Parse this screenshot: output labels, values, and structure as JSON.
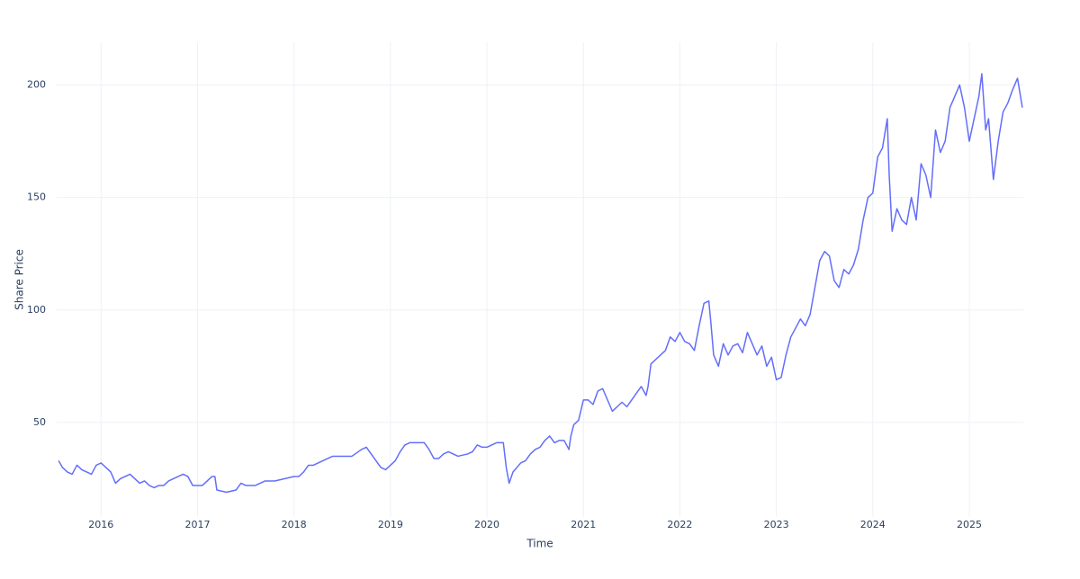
{
  "chart_data": {
    "type": "line",
    "x_label": "Time",
    "y_label": "Share Price",
    "color": "#636efa",
    "grid": true,
    "xlim": [
      2015.54,
      2025.56
    ],
    "ylim": [
      8,
      219
    ],
    "xticks": [
      2016,
      2017,
      2018,
      2019,
      2020,
      2021,
      2022,
      2023,
      2024,
      2025
    ],
    "yticks": [
      50,
      100,
      150,
      200
    ],
    "x": [
      2015.56,
      2015.6,
      2015.65,
      2015.7,
      2015.75,
      2015.8,
      2015.85,
      2015.9,
      2015.95,
      2016.0,
      2016.05,
      2016.1,
      2016.15,
      2016.2,
      2016.25,
      2016.3,
      2016.35,
      2016.4,
      2016.45,
      2016.5,
      2016.55,
      2016.6,
      2016.65,
      2016.7,
      2016.75,
      2016.8,
      2016.85,
      2016.9,
      2016.95,
      2017.0,
      2017.05,
      2017.1,
      2017.15,
      2017.18,
      2017.2,
      2017.3,
      2017.4,
      2017.45,
      2017.5,
      2017.6,
      2017.7,
      2017.8,
      2017.9,
      2018.0,
      2018.05,
      2018.1,
      2018.15,
      2018.2,
      2018.3,
      2018.4,
      2018.5,
      2018.6,
      2018.7,
      2018.75,
      2018.8,
      2018.85,
      2018.9,
      2018.95,
      2019.0,
      2019.05,
      2019.1,
      2019.15,
      2019.2,
      2019.3,
      2019.35,
      2019.4,
      2019.45,
      2019.5,
      2019.55,
      2019.6,
      2019.7,
      2019.8,
      2019.85,
      2019.9,
      2019.95,
      2020.0,
      2020.05,
      2020.1,
      2020.15,
      2020.17,
      2020.2,
      2020.23,
      2020.27,
      2020.35,
      2020.4,
      2020.45,
      2020.5,
      2020.55,
      2020.6,
      2020.65,
      2020.7,
      2020.75,
      2020.8,
      2020.85,
      2020.87,
      2020.9,
      2020.95,
      2021.0,
      2021.05,
      2021.1,
      2021.15,
      2021.2,
      2021.25,
      2021.3,
      2021.35,
      2021.4,
      2021.45,
      2021.5,
      2021.55,
      2021.6,
      2021.65,
      2021.67,
      2021.7,
      2021.75,
      2021.8,
      2021.85,
      2021.9,
      2021.95,
      2022.0,
      2022.05,
      2022.1,
      2022.15,
      2022.2,
      2022.25,
      2022.3,
      2022.32,
      2022.35,
      2022.4,
      2022.45,
      2022.5,
      2022.55,
      2022.6,
      2022.65,
      2022.7,
      2022.75,
      2022.8,
      2022.85,
      2022.9,
      2022.95,
      2023.0,
      2023.05,
      2023.1,
      2023.15,
      2023.2,
      2023.25,
      2023.3,
      2023.35,
      2023.4,
      2023.45,
      2023.5,
      2023.55,
      2023.6,
      2023.65,
      2023.7,
      2023.75,
      2023.8,
      2023.85,
      2023.9,
      2023.95,
      2024.0,
      2024.05,
      2024.1,
      2024.15,
      2024.17,
      2024.2,
      2024.25,
      2024.3,
      2024.35,
      2024.4,
      2024.45,
      2024.5,
      2024.55,
      2024.6,
      2024.65,
      2024.7,
      2024.75,
      2024.8,
      2024.85,
      2024.9,
      2024.95,
      2025.0,
      2025.05,
      2025.1,
      2025.13,
      2025.17,
      2025.2,
      2025.25,
      2025.3,
      2025.35,
      2025.4,
      2025.45,
      2025.5,
      2025.55
    ],
    "values": [
      33,
      30,
      28,
      27,
      31,
      29,
      28,
      27,
      31,
      32,
      30,
      28,
      23,
      25,
      26,
      27,
      25,
      23,
      24,
      22,
      21,
      22,
      22,
      24,
      25,
      26,
      27,
      26,
      22,
      22,
      22,
      24,
      26,
      26,
      20,
      19,
      20,
      23,
      22,
      22,
      24,
      24,
      25,
      26,
      26,
      28,
      31,
      31,
      33,
      35,
      35,
      35,
      38,
      39,
      36,
      33,
      30,
      29,
      31,
      33,
      37,
      40,
      41,
      41,
      41,
      38,
      34,
      34,
      36,
      37,
      35,
      36,
      37,
      40,
      39,
      39,
      40,
      41,
      41,
      41,
      30,
      23,
      28,
      32,
      33,
      36,
      38,
      39,
      42,
      44,
      41,
      42,
      42,
      38,
      44,
      49,
      51,
      60,
      60,
      58,
      64,
      65,
      60,
      55,
      57,
      59,
      57,
      60,
      63,
      66,
      62,
      66,
      76,
      78,
      80,
      82,
      88,
      86,
      90,
      86,
      85,
      82,
      93,
      103,
      104,
      95,
      80,
      75,
      85,
      80,
      84,
      85,
      81,
      90,
      85,
      80,
      84,
      75,
      79,
      69,
      70,
      80,
      88,
      92,
      96,
      93,
      98,
      110,
      122,
      126,
      124,
      113,
      110,
      118,
      116,
      120,
      127,
      140,
      150,
      152,
      168,
      172,
      185,
      160,
      135,
      145,
      140,
      138,
      150,
      140,
      165,
      160,
      150,
      180,
      170,
      175,
      190,
      195,
      200,
      190,
      175,
      185,
      195,
      205,
      180,
      185,
      158,
      175,
      188,
      192,
      198,
      203,
      190
    ]
  }
}
